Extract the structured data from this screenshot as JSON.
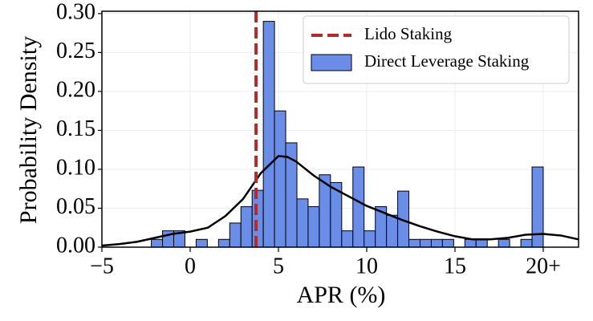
{
  "chart_data": {
    "type": "histogram",
    "x_label": "APR (%)",
    "y_label": "Probability Density",
    "xlim": [
      -5,
      22
    ],
    "ylim": [
      0,
      0.303
    ],
    "xticks": [
      {
        "value": -5,
        "label": "−5"
      },
      0,
      5,
      10,
      15,
      {
        "value": 20,
        "label": "20+"
      }
    ],
    "yticks": [
      {
        "value": 0,
        "label": "0.00"
      },
      {
        "value": 0.05,
        "label": "0.05"
      },
      {
        "value": 0.1,
        "label": "0.10"
      },
      {
        "value": 0.15,
        "label": "0.15"
      },
      {
        "value": 0.2,
        "label": "0.20"
      },
      {
        "value": 0.25,
        "label": "0.25"
      },
      {
        "value": 0.3,
        "label": "0.30"
      }
    ],
    "grid": true,
    "legend": "upper right",
    "series": [
      {
        "name": "Direct Leverage Staking",
        "color": "#6a8ee8",
        "bins": [
          -2.2,
          -1.566,
          -0.931,
          -0.297,
          0.337,
          0.971,
          1.606,
          2.24,
          2.874,
          3.509,
          4.143,
          4.777,
          5.411,
          6.046,
          6.68,
          7.314,
          7.949,
          8.583,
          9.217,
          9.851,
          10.486,
          11.12,
          11.754,
          12.389,
          13.023,
          13.657,
          14.291,
          14.926,
          15.56,
          16.194,
          16.829,
          17.463,
          18.097,
          18.731,
          19.366,
          20.0
        ],
        "values": [
          0.01,
          0.021,
          0.021,
          0,
          0.01,
          0,
          0.01,
          0.031,
          0.052,
          0.073,
          0.29,
          0.175,
          0.134,
          0.062,
          0.052,
          0.093,
          0.083,
          0.021,
          0.103,
          0.021,
          0.052,
          0.041,
          0.072,
          0.01,
          0.01,
          0.01,
          0.01,
          0,
          0.01,
          0.01,
          0,
          0.01,
          0,
          0.01,
          0.103
        ]
      },
      {
        "type": "line",
        "color": "#000000",
        "x": [
          -5,
          -4,
          -3,
          -2,
          -1,
          0,
          1,
          2,
          3,
          4,
          5,
          5.5,
          6,
          7,
          8,
          9,
          10,
          11,
          12,
          13,
          14,
          15,
          16,
          17,
          18,
          19,
          20,
          21,
          22
        ],
        "values": [
          0.002,
          0.004,
          0.007,
          0.012,
          0.017,
          0.02,
          0.025,
          0.04,
          0.062,
          0.095,
          0.117,
          0.116,
          0.11,
          0.092,
          0.077,
          0.065,
          0.053,
          0.044,
          0.035,
          0.027,
          0.02,
          0.014,
          0.01,
          0.01,
          0.012,
          0.016,
          0.017,
          0.015,
          0.01
        ]
      },
      {
        "type": "vline",
        "name": "Lido Staking",
        "color": "#b22a2a",
        "x": 3.73
      }
    ]
  }
}
